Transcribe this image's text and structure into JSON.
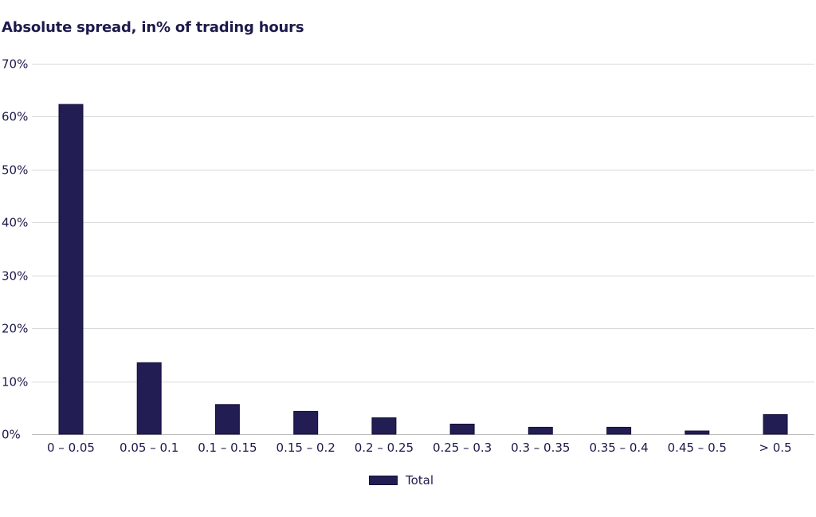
{
  "chart_data": {
    "type": "bar",
    "title": "Absolute spread, in% of trading hours",
    "xlabel": "",
    "ylabel": "",
    "categories": [
      "0 – 0.05",
      "0.05 – 0.1",
      "0.1 – 0.15",
      "0.15 – 0.2",
      "0.2 – 0.25",
      "0.25 – 0.3",
      "0.3 – 0.35",
      "0.35 – 0.4",
      "0.45 – 0.5",
      "> 0.5"
    ],
    "series": [
      {
        "name": "Total",
        "values": [
          62.3,
          13.5,
          5.6,
          4.3,
          3.1,
          1.9,
          1.3,
          1.3,
          0.6,
          3.7
        ],
        "color": "#221d52"
      }
    ],
    "ylim": [
      0,
      70
    ],
    "yticks": [
      0,
      10,
      20,
      30,
      40,
      50,
      60,
      70
    ],
    "ytick_labels": [
      "0%",
      "10%",
      "20%",
      "30%",
      "40%",
      "50%",
      "60%",
      "70%"
    ],
    "grid": true,
    "legend_position": "bottom-center"
  }
}
